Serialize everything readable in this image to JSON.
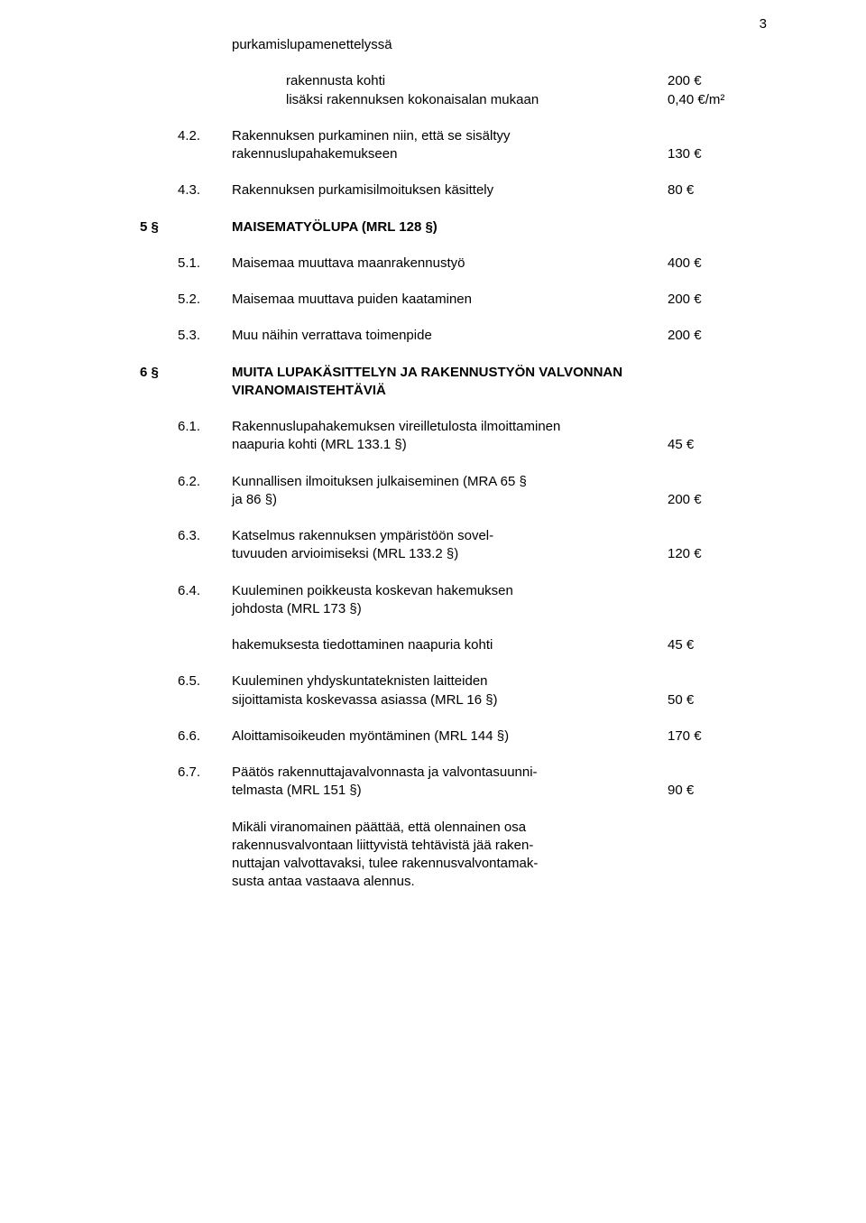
{
  "pageNumber": "3",
  "intro": {
    "label": "purkamislupamenettelyssä",
    "r1_label": "rakennusta kohti",
    "r1_value": "200 €",
    "r2_label": "lisäksi rakennuksen kokonaisalan mukaan",
    "r2_value": "0,40 €/m²"
  },
  "s4": {
    "i2": {
      "num": "4.2.",
      "line1": "Rakennuksen purkaminen niin, että se sisältyy",
      "line2": "rakennuslupahakemukseen",
      "value": "130 €"
    },
    "i3": {
      "num": "4.3.",
      "label": "Rakennuksen purkamisilmoituksen käsittely",
      "value": "80 €"
    }
  },
  "s5": {
    "num": "5 §",
    "title": "MAISEMATYÖLUPA (MRL 128 §)",
    "i1": {
      "num": "5.1.",
      "label": "Maisemaa muuttava maanrakennustyö",
      "value": "400 €"
    },
    "i2": {
      "num": "5.2.",
      "label": "Maisemaa muuttava puiden kaataminen",
      "value": "200 €"
    },
    "i3": {
      "num": "5.3.",
      "label": "Muu näihin verrattava toimenpide",
      "value": "200 €"
    }
  },
  "s6": {
    "num": "6 §",
    "title1": "MUITA LUPAKÄSITTELYN JA RAKENNUSTYÖN VALVONNAN",
    "title2": "VIRANOMAISTEHTÄVIÄ",
    "i1": {
      "num": "6.1.",
      "line1": "Rakennuslupahakemuksen vireilletulosta ilmoittaminen",
      "line2": "naapuria kohti (MRL 133.1 §)",
      "value": "45 €"
    },
    "i2": {
      "num": "6.2.",
      "line1": "Kunnallisen ilmoituksen julkaiseminen (MRA 65 §",
      "line2": "ja 86 §)",
      "value": "200 €"
    },
    "i3": {
      "num": "6.3.",
      "line1": "Katselmus rakennuksen ympäristöön sovel-",
      "line2": "tuvuuden arvioimiseksi (MRL 133.2 §)",
      "value": "120 €"
    },
    "i4": {
      "num": "6.4.",
      "line1": "Kuuleminen poikkeusta koskevan hakemuksen",
      "line2": "johdosta (MRL 173 §)",
      "line3": "hakemuksesta tiedottaminen naapuria kohti",
      "value": "45 €"
    },
    "i5": {
      "num": "6.5.",
      "line1": "Kuuleminen yhdyskuntateknisten laitteiden",
      "line2": "sijoittamista koskevassa asiassa (MRL 16 §)",
      "value": "50 €"
    },
    "i6": {
      "num": "6.6.",
      "label": "Aloittamisoikeuden myöntäminen (MRL 144 §)",
      "value": "170 €"
    },
    "i7": {
      "num": "6.7.",
      "line1": "Päätös rakennuttajavalvonnasta ja valvontasuunni-",
      "line2": "telmasta (MRL 151 §)",
      "value": "90 €"
    },
    "para": {
      "l1": "Mikäli viranomainen päättää, että olennainen osa",
      "l2": "rakennusvalvontaan liittyvistä tehtävistä jää raken-",
      "l3": "nuttajan valvottavaksi, tulee rakennusvalvontamak-",
      "l4": "susta antaa vastaava alennus."
    }
  }
}
